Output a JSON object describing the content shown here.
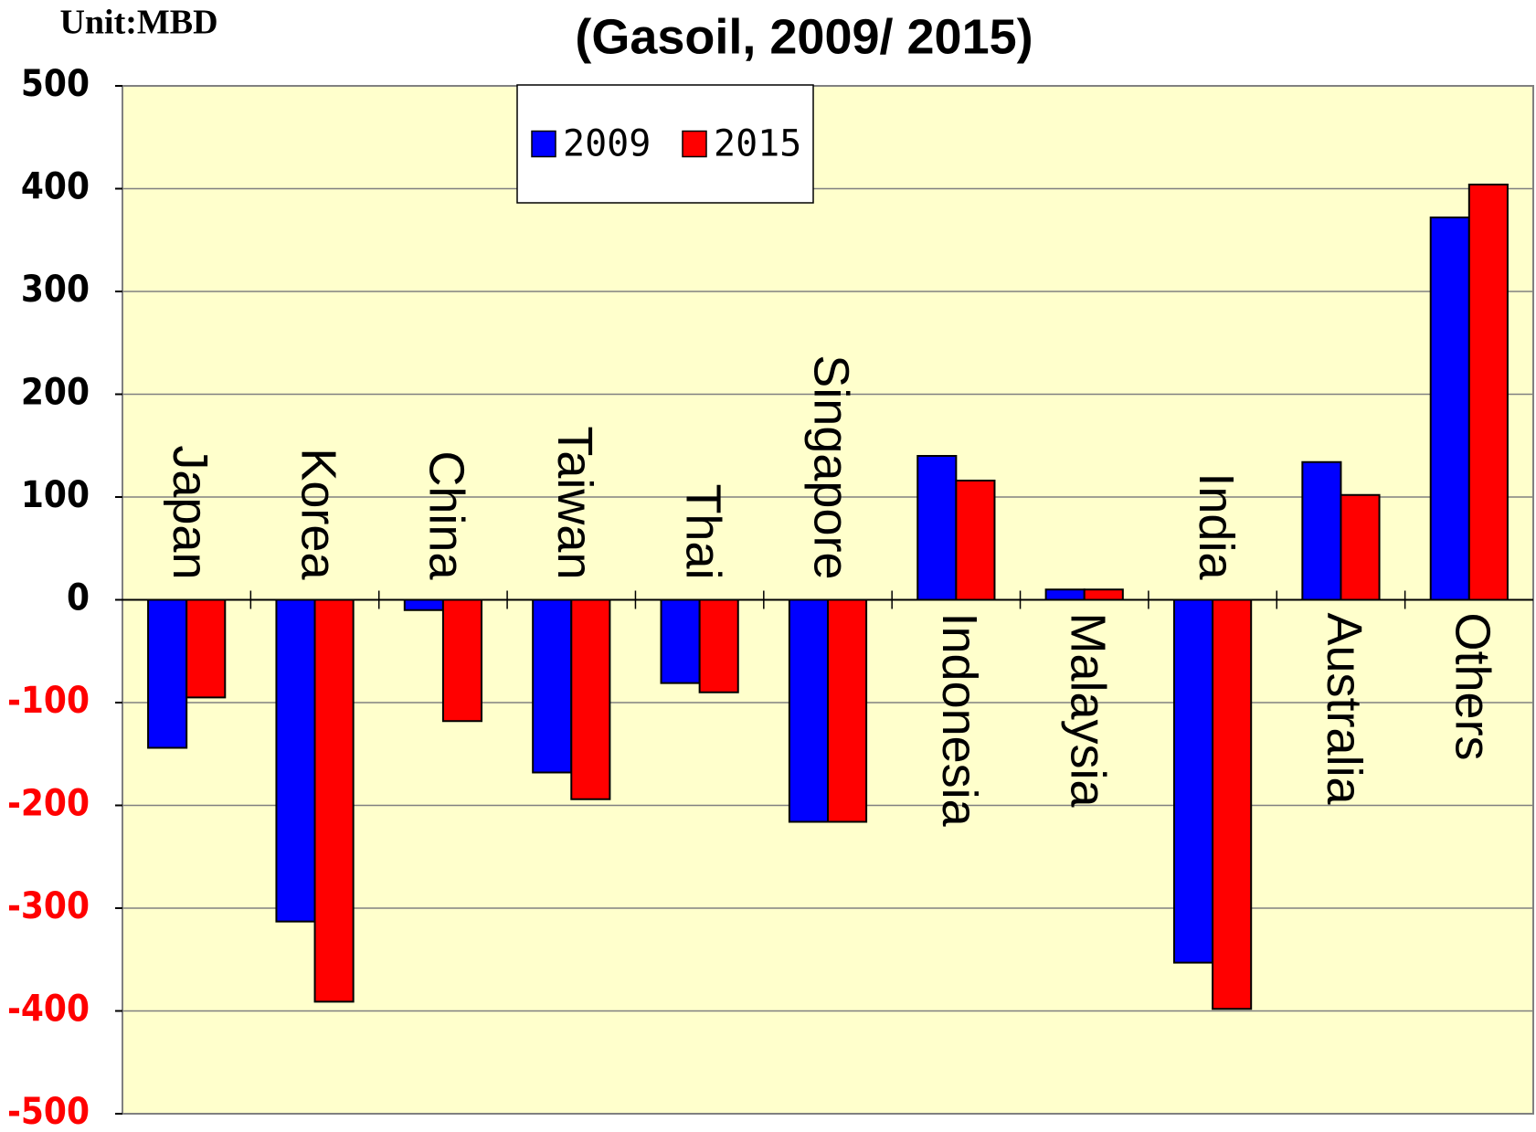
{
  "chart_data": {
    "type": "bar",
    "title": "(Gasoil, 2009/ 2015)",
    "unit_label": "Unit:MBD",
    "categories": [
      "Japan",
      "Korea",
      "China",
      "Taiwan",
      "Thai",
      "Singapore",
      "Indonesia",
      "Malaysia",
      "India",
      "Australia",
      "Others"
    ],
    "series": [
      {
        "name": "2009",
        "color": "#0000ff",
        "values": [
          -144,
          -313,
          -10,
          -168,
          -81,
          -216,
          140,
          10,
          -353,
          134,
          372
        ]
      },
      {
        "name": "2015",
        "color": "#ff0000",
        "values": [
          -95,
          -391,
          -118,
          -194,
          -90,
          -216,
          116,
          10,
          -398,
          102,
          404
        ]
      }
    ],
    "ylim": [
      -500,
      500
    ],
    "yticks": [
      -500,
      -400,
      -300,
      -200,
      -100,
      0,
      100,
      200,
      300,
      400,
      500
    ],
    "grid": true,
    "plot_background": "#ffffcc",
    "negative_tick_color": "#ff0000"
  }
}
